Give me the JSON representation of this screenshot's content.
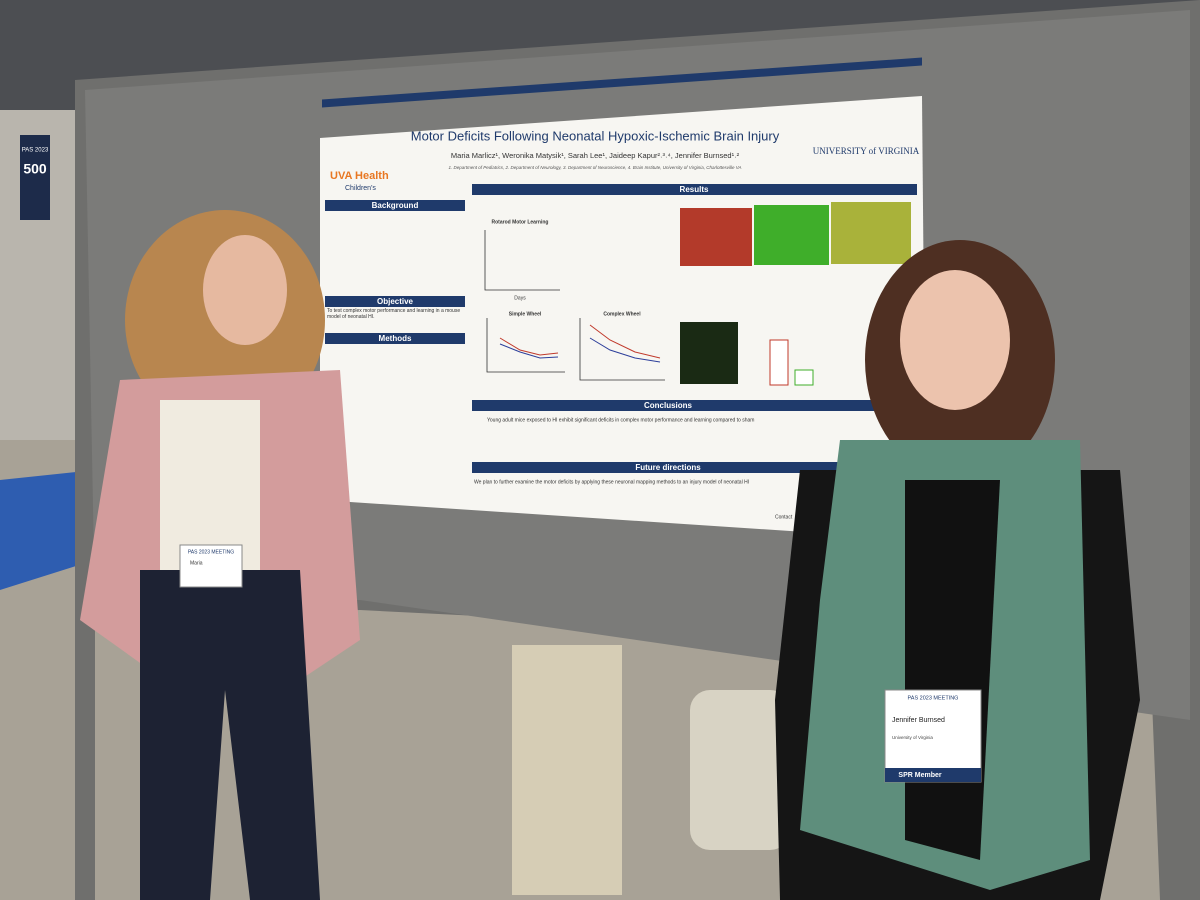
{
  "sign": {
    "event": "PAS 2023",
    "number": "500"
  },
  "poster": {
    "logo_left": "UVA Health",
    "logo_left_sub": "Children's",
    "logo_right": "UNIVERSITY of VIRGINIA",
    "title": "Motor Deficits Following Neonatal Hypoxic-Ischemic Brain Injury",
    "authors": "Maria Marlicz¹, Weronika Matysik¹, Sarah Lee¹, Jaideep Kapur²˒³˒⁴, Jennifer Burnsed¹˒²",
    "affiliations": "1. Department of Pediatrics, 2. Department of Neurology, 3. Department of Neuroscience, 4. Brain Institute, University of Virginia, Charlottesville VA",
    "sections": {
      "background": "Background",
      "objective": "Objective",
      "objective_text": "To test complex motor performance and learning in a mouse model of neonatal HI.",
      "methods": "Methods",
      "results": "Results",
      "conclusions": "Conclusions",
      "conclusions_text": "Young adult mice exposed to HI exhibit significant deficits in complex motor performance and learning compared to sham",
      "future": "Future directions",
      "future_text": "We plan to further examine the motor deficits by applying these neuronal mapping methods to an injury model of neonatal HI"
    },
    "charts": {
      "rotarod": "Rotarod Motor Learning",
      "simple": "Simple Wheel",
      "complex": "Complex Wheel",
      "x_label": "Days"
    },
    "contact": "Contact"
  },
  "badges": {
    "left": {
      "meeting": "PAS 2023 MEETING",
      "name": "Maria"
    },
    "right": {
      "meeting": "PAS 2023 MEETING",
      "name": "Jennifer Burnsed",
      "org": "University of Virginia",
      "member": "SPR Member"
    }
  }
}
